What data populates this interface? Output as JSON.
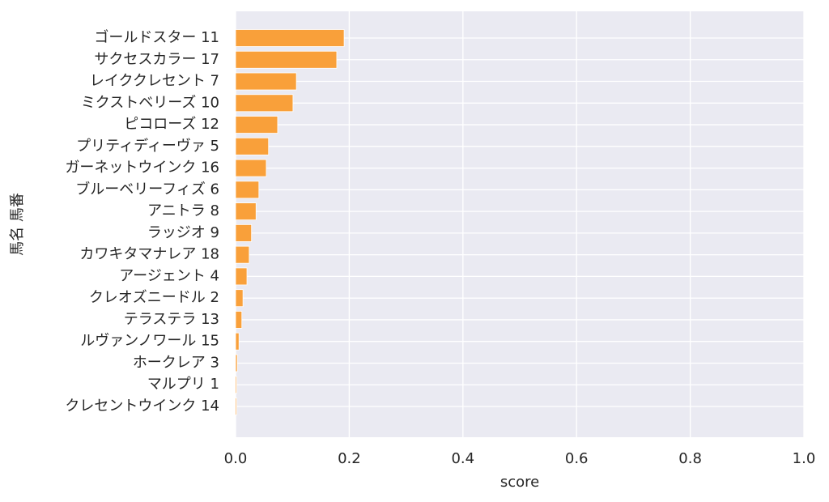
{
  "chart_data": {
    "type": "barh",
    "x_label": "score",
    "y_label": "馬名 馬番",
    "categories": [
      "ゴールドスター 11",
      "サクセスカラー 17",
      "レイククレセント 7",
      "ミクストベリーズ 10",
      "ピコローズ 12",
      "プリティディーヴァ 5",
      "ガーネットウインク 16",
      "ブルーベリーフィズ 6",
      "アニトラ 8",
      "ラッジオ 9",
      "カワキタマナレア 18",
      "アージェント 4",
      "クレオズニードル 2",
      "テラステラ 13",
      "ルヴァンノワール 15",
      "ホークレア 3",
      "マルプリ 1",
      "クレセントウインク 14"
    ],
    "values": [
      0.191,
      0.178,
      0.107,
      0.101,
      0.074,
      0.058,
      0.054,
      0.041,
      0.036,
      0.028,
      0.024,
      0.02,
      0.013,
      0.011,
      0.006,
      0.003,
      0.002,
      0.002
    ],
    "color": "#f9a03a",
    "xlim": [
      0,
      1
    ],
    "xticks": [
      {
        "value": 0,
        "label": "0.0"
      },
      0.2,
      0.4,
      0.6,
      0.8,
      {
        "value": 1,
        "label": "1.0"
      }
    ],
    "grid": true
  }
}
